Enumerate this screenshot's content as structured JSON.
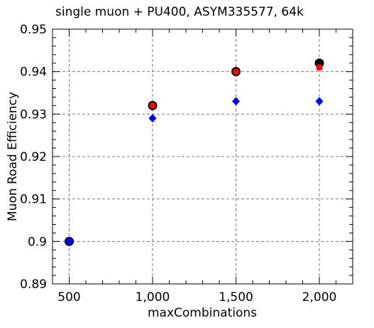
{
  "chart_data": {
    "type": "scatter",
    "title": "single muon + PU400, ASYM335577, 64k",
    "xlabel": "maxCombinations",
    "ylabel": "Muon Road Efficiency",
    "x": [
      500,
      1000,
      1500,
      2000
    ],
    "x_tick_labels": [
      "500",
      "1,000",
      "1,500",
      "2,000"
    ],
    "xlim": [
      400,
      2200
    ],
    "ylim": [
      0.89,
      0.95
    ],
    "y_ticks": [
      0.89,
      0.9,
      0.91,
      0.92,
      0.93,
      0.94,
      0.95
    ],
    "y_tick_labels": [
      "0.89",
      "0.9",
      "0.91",
      "0.92",
      "0.93",
      "0.94",
      "0.95"
    ],
    "grid": true,
    "series": [
      {
        "marker": "circle-large",
        "color": "#000000",
        "values": [
          0.9,
          0.932,
          0.94,
          0.942
        ]
      },
      {
        "marker": "circle-small",
        "color": "#ff0000",
        "values": [
          0.9,
          0.932,
          0.94,
          0.941
        ]
      },
      {
        "marker": "square",
        "color": "#ff0000",
        "values": [
          null,
          null,
          null,
          0.941
        ]
      },
      {
        "marker": "diamond",
        "color": "#0000ff",
        "values": [
          0.9,
          0.929,
          0.933,
          0.933
        ]
      },
      {
        "marker": "circle-blue",
        "color": "#0000ff",
        "values": [
          0.9,
          null,
          null,
          null
        ]
      }
    ]
  }
}
